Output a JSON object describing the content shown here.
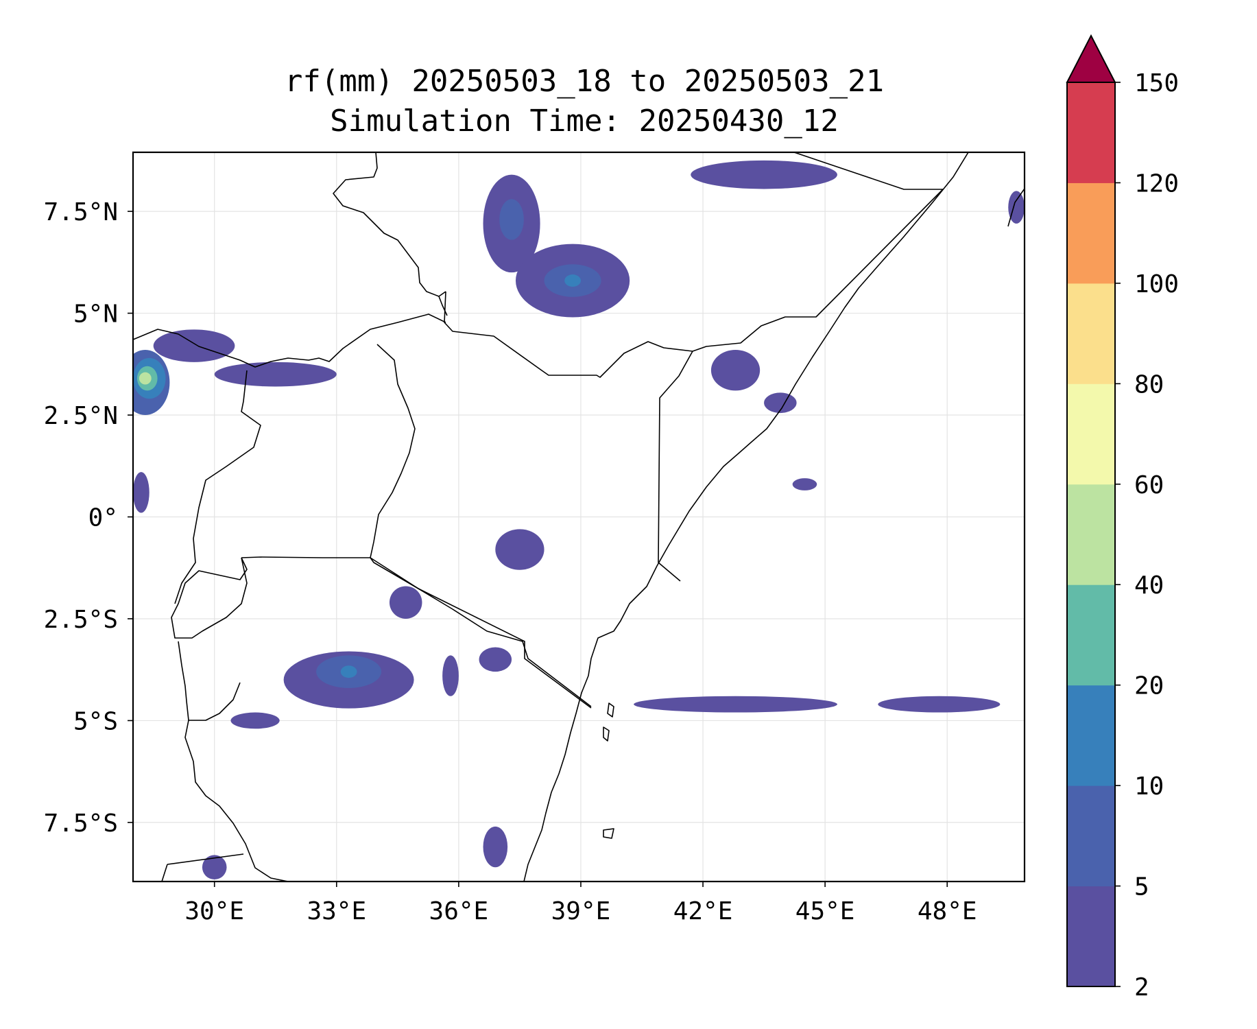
{
  "title": {
    "line1": "rf(mm) 20250503_18 to 20250503_21",
    "line2": "Simulation Time: 20250430_12"
  },
  "map": {
    "extent": {
      "lon": [
        28.0,
        49.9
      ],
      "lat": [
        -8.95,
        8.95
      ]
    },
    "lon_ticks": [
      30,
      33,
      36,
      39,
      42,
      45,
      48
    ],
    "lat_ticks": [
      7.5,
      5,
      2.5,
      0,
      -2.5,
      -5,
      -7.5
    ],
    "lon_tick_labels": [
      "30°E",
      "33°E",
      "36°E",
      "39°E",
      "42°E",
      "45°E",
      "48°E"
    ],
    "lat_tick_labels": [
      "7.5°N",
      "5°N",
      "2.5°N",
      "0°",
      "2.5°S",
      "5°S",
      "7.5°S"
    ],
    "grid": true,
    "coastline_color": "#000000"
  },
  "colorbar": {
    "levels": [
      2,
      5,
      10,
      20,
      40,
      60,
      80,
      100,
      120,
      150
    ],
    "labels": [
      "2",
      "5",
      "10",
      "20",
      "40",
      "60",
      "80",
      "100",
      "120",
      "150"
    ],
    "colors": [
      "#5a50a0",
      "#4a62ad",
      "#3780bb",
      "#62bba8",
      "#bce3a1",
      "#f3f9ac",
      "#fbdf8c",
      "#f99d59",
      "#d63d50"
    ],
    "extend_color": "#9e0142",
    "extend": "max"
  },
  "rain_cells": [
    {
      "lon": 28.3,
      "lat": 3.3,
      "rx": 0.6,
      "ry": 0.8,
      "level": 1
    },
    {
      "lon": 28.4,
      "lat": 3.4,
      "rx": 0.4,
      "ry": 0.5,
      "level": 2
    },
    {
      "lon": 28.35,
      "lat": 3.4,
      "rx": 0.25,
      "ry": 0.3,
      "level": 3
    },
    {
      "lon": 28.3,
      "lat": 3.4,
      "rx": 0.15,
      "ry": 0.15,
      "level": 4
    },
    {
      "lon": 29.5,
      "lat": 4.2,
      "rx": 1.0,
      "ry": 0.4,
      "level": 0
    },
    {
      "lon": 31.5,
      "lat": 3.5,
      "rx": 1.5,
      "ry": 0.3,
      "level": 0
    },
    {
      "lon": 28.2,
      "lat": 0.6,
      "rx": 0.2,
      "ry": 0.5,
      "level": 0
    },
    {
      "lon": 37.3,
      "lat": 7.2,
      "rx": 0.7,
      "ry": 1.2,
      "level": 0
    },
    {
      "lon": 37.3,
      "lat": 7.3,
      "rx": 0.3,
      "ry": 0.5,
      "level": 1
    },
    {
      "lon": 38.8,
      "lat": 5.8,
      "rx": 1.4,
      "ry": 0.9,
      "level": 0
    },
    {
      "lon": 38.8,
      "lat": 5.8,
      "rx": 0.7,
      "ry": 0.4,
      "level": 1
    },
    {
      "lon": 38.8,
      "lat": 5.8,
      "rx": 0.2,
      "ry": 0.15,
      "level": 2
    },
    {
      "lon": 43.5,
      "lat": 8.4,
      "rx": 1.8,
      "ry": 0.35,
      "level": 0
    },
    {
      "lon": 42.8,
      "lat": 3.6,
      "rx": 0.6,
      "ry": 0.5,
      "level": 0
    },
    {
      "lon": 43.9,
      "lat": 2.8,
      "rx": 0.4,
      "ry": 0.25,
      "level": 0
    },
    {
      "lon": 37.5,
      "lat": -0.8,
      "rx": 0.6,
      "ry": 0.5,
      "level": 0
    },
    {
      "lon": 33.3,
      "lat": -4.0,
      "rx": 1.6,
      "ry": 0.7,
      "level": 0
    },
    {
      "lon": 33.3,
      "lat": -3.8,
      "rx": 0.8,
      "ry": 0.4,
      "level": 1
    },
    {
      "lon": 33.3,
      "lat": -3.8,
      "rx": 0.2,
      "ry": 0.15,
      "level": 2
    },
    {
      "lon": 34.7,
      "lat": -2.1,
      "rx": 0.4,
      "ry": 0.4,
      "level": 0
    },
    {
      "lon": 35.8,
      "lat": -3.9,
      "rx": 0.2,
      "ry": 0.5,
      "level": 0
    },
    {
      "lon": 36.9,
      "lat": -3.5,
      "rx": 0.4,
      "ry": 0.3,
      "level": 0
    },
    {
      "lon": 31.0,
      "lat": -5.0,
      "rx": 0.6,
      "ry": 0.2,
      "level": 0
    },
    {
      "lon": 42.8,
      "lat": -4.6,
      "rx": 2.5,
      "ry": 0.2,
      "level": 0
    },
    {
      "lon": 47.8,
      "lat": -4.6,
      "rx": 1.5,
      "ry": 0.2,
      "level": 0
    },
    {
      "lon": 36.9,
      "lat": -8.1,
      "rx": 0.3,
      "ry": 0.5,
      "level": 0
    },
    {
      "lon": 30.0,
      "lat": -8.6,
      "rx": 0.3,
      "ry": 0.3,
      "level": 0
    },
    {
      "lon": 49.7,
      "lat": 7.6,
      "rx": 0.2,
      "ry": 0.4,
      "level": 0
    },
    {
      "lon": 44.5,
      "lat": 0.8,
      "rx": 0.3,
      "ry": 0.15,
      "level": 0
    }
  ]
}
